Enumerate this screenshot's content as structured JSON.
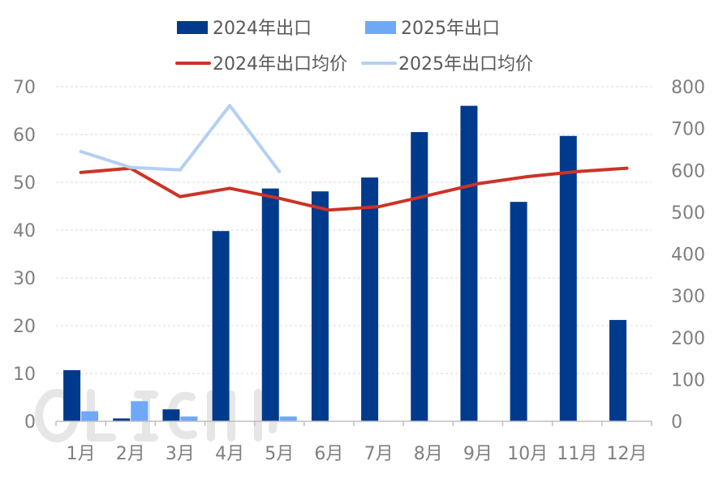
{
  "chart_data": {
    "type": "bar",
    "categories": [
      "1月",
      "2月",
      "3月",
      "4月",
      "5月",
      "6月",
      "7月",
      "8月",
      "9月",
      "10月",
      "11月",
      "12月"
    ],
    "series": [
      {
        "name": "2024年出口",
        "type": "bar",
        "axis": "left",
        "color": "#003a8c",
        "values": [
          10.7,
          0.6,
          2.5,
          39.8,
          48.7,
          48.1,
          51.0,
          60.5,
          66.0,
          45.9,
          59.7,
          21.2
        ]
      },
      {
        "name": "2025年出口",
        "type": "bar",
        "axis": "left",
        "color": "#6fa8f7",
        "values": [
          2.1,
          4.2,
          1.0,
          null,
          1.0,
          null,
          null,
          null,
          null,
          null,
          null,
          null
        ]
      },
      {
        "name": "2024年出口均价",
        "type": "line",
        "axis": "right",
        "color": "#cc3328",
        "values": [
          595,
          605,
          537,
          557,
          533,
          505,
          513,
          540,
          568,
          585,
          597,
          605
        ]
      },
      {
        "name": "2025年出口均价",
        "type": "line",
        "axis": "right",
        "color": "#b4cff3",
        "values": [
          645,
          607,
          601,
          755,
          597,
          null,
          null,
          null,
          null,
          null,
          null,
          null
        ]
      }
    ],
    "y_left": {
      "min": 0,
      "max": 70,
      "ticks": [
        0,
        10,
        20,
        30,
        40,
        50,
        60,
        70
      ]
    },
    "y_right": {
      "min": 0,
      "max": 800,
      "ticks": [
        0,
        100,
        200,
        300,
        400,
        500,
        600,
        700,
        800
      ]
    },
    "grid": true,
    "legend_position": "top"
  }
}
